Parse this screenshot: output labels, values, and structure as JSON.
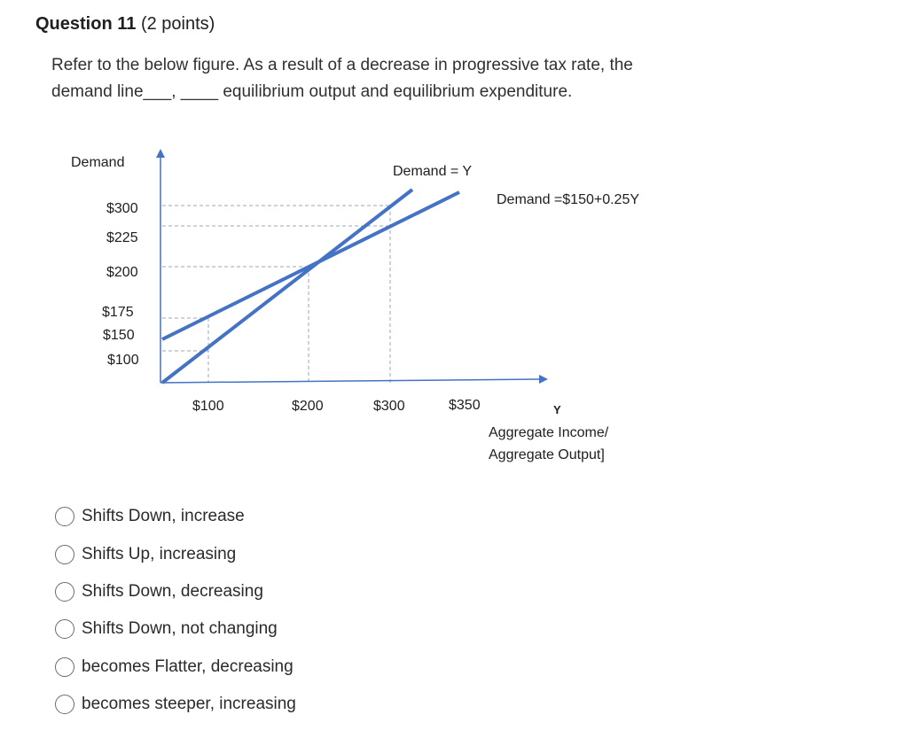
{
  "question": {
    "number_label": "Question 11",
    "points_label": "(2 points)",
    "prompt_line1": "Refer to the below figure. As a result of a decrease in progressive tax rate, the",
    "prompt_line2": "demand line___, ____ equilibrium output and equilibrium expenditure."
  },
  "figure": {
    "y_axis_label": "Demand",
    "y_ticks": [
      "$300",
      "$225",
      "$200",
      "$175",
      "$150",
      "$100"
    ],
    "x_ticks": [
      "$100",
      "$200",
      "$300",
      "$350"
    ],
    "x_axis_symbol": "Y",
    "x_axis_label_line1": "Aggregate Income/",
    "x_axis_label_line2": "Aggregate Output]",
    "line_45_label": "Demand = Y",
    "demand_line_label": "Demand =$150+0.25Y",
    "line_color": "#4472C4"
  },
  "options": [
    {
      "label": "Shifts Down, increase",
      "selected": false
    },
    {
      "label": "Shifts Up, increasing",
      "selected": false
    },
    {
      "label": "Shifts Down, decreasing",
      "selected": false
    },
    {
      "label": "Shifts Down, not changing",
      "selected": false
    },
    {
      "label": "becomes Flatter, decreasing",
      "selected": false
    },
    {
      "label": "becomes steeper, increasing",
      "selected": false
    }
  ]
}
